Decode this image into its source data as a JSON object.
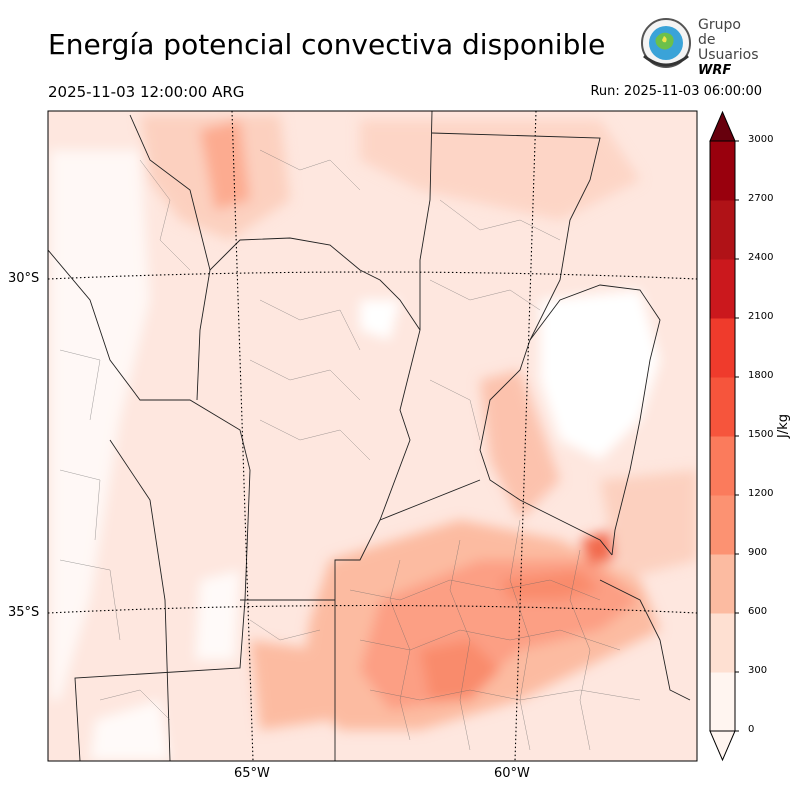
{
  "header": {
    "title": "Energía potencial convectiva disponible",
    "valid_time": "2025-11-03 12:00:00 ARG",
    "run_time": "Run: 2025-11-03 06:00:00"
  },
  "logo": {
    "line1": "Grupo de",
    "line2": "Usuarios",
    "line3": "WRF"
  },
  "map": {
    "field": "CAPE",
    "lat_labels": [
      "30°S",
      "35°S"
    ],
    "lon_labels": [
      "65°W",
      "60°W"
    ]
  },
  "colorbar": {
    "unit": "J/kg",
    "levels": [
      "0",
      "300",
      "600",
      "900",
      "1200",
      "1500",
      "1800",
      "2100",
      "2400",
      "2700",
      "3000"
    ],
    "colors": [
      "#fff5f0",
      "#fee0d2",
      "#fcbba1",
      "#fc9272",
      "#fb7b5c",
      "#f6553c",
      "#ef3b2c",
      "#cb181d",
      "#b01217",
      "#99000d",
      "#67000d"
    ],
    "extend": "both"
  }
}
